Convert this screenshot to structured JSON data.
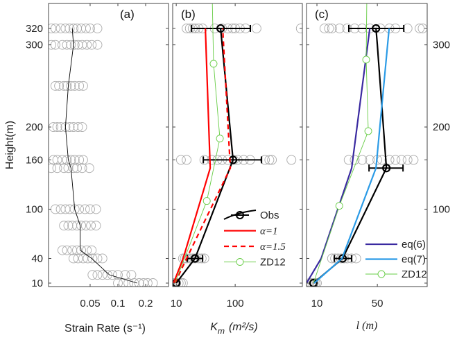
{
  "chart_data": [
    {
      "panel": "a",
      "type": "line",
      "title": "(a)",
      "xlabel": "Strain Rate (s⁻¹)",
      "ylabel": "Height(m)",
      "xscale": "log",
      "xlim": [
        0.0177,
        0.354
      ],
      "ylim": [
        6,
        350
      ],
      "xticks": [
        0.05,
        0.1,
        0.2
      ],
      "xtick_labels": [
        "0.05",
        "0.1",
        "0.2"
      ],
      "yticks": [
        10,
        40,
        100,
        160,
        200,
        300,
        320
      ],
      "ytick_labels": [
        "10",
        "40",
        "100",
        "160",
        "200",
        "300",
        "320"
      ],
      "series": [
        {
          "name": "Obs",
          "color": "#000000",
          "heights": [
            10,
            20,
            40,
            50,
            80,
            100,
            150,
            160,
            200,
            250,
            300,
            320
          ],
          "mean": [
            0.162,
            0.081,
            0.052,
            0.039,
            0.039,
            0.034,
            0.031,
            0.029,
            0.027,
            0.029,
            0.033,
            0.032
          ],
          "err_low": [
            0.107,
            0.053,
            0.038,
            0.028,
            0.027,
            0.023,
            0.023,
            0.021,
            0.021,
            0.021,
            0.021,
            0.02
          ],
          "err_high": [
            0.225,
            0.125,
            0.065,
            0.05,
            0.051,
            0.045,
            0.04,
            0.037,
            0.034,
            0.039,
            0.047,
            0.044
          ]
        }
      ],
      "samples": [
        {
          "height": 320,
          "values": [
            0.019,
            0.021,
            0.024,
            0.027,
            0.03,
            0.033,
            0.036,
            0.04,
            0.045,
            0.05,
            0.06
          ]
        },
        {
          "height": 300,
          "values": [
            0.019,
            0.021,
            0.025,
            0.028,
            0.031,
            0.034,
            0.037,
            0.041,
            0.046,
            0.052,
            0.06
          ]
        },
        {
          "height": 250,
          "values": [
            0.021,
            0.023,
            0.026,
            0.028,
            0.031,
            0.034,
            0.038,
            0.042
          ]
        },
        {
          "height": 200,
          "values": [
            0.02,
            0.022,
            0.024,
            0.027,
            0.03,
            0.033,
            0.037,
            0.041
          ]
        },
        {
          "height": 160,
          "values": [
            0.02,
            0.022,
            0.025,
            0.028,
            0.031,
            0.034,
            0.038,
            0.042
          ]
        },
        {
          "height": 150,
          "values": [
            0.019,
            0.022,
            0.026,
            0.029,
            0.033,
            0.036,
            0.041,
            0.049
          ]
        },
        {
          "height": 100,
          "values": [
            0.021,
            0.024,
            0.027,
            0.03,
            0.034,
            0.038,
            0.044,
            0.05,
            0.058
          ]
        },
        {
          "height": 80,
          "values": [
            0.026,
            0.029,
            0.032,
            0.036,
            0.04,
            0.045,
            0.051,
            0.058
          ]
        },
        {
          "height": 50,
          "values": [
            0.025,
            0.028,
            0.032,
            0.036,
            0.04,
            0.046,
            0.052
          ]
        },
        {
          "height": 40,
          "values": [
            0.033,
            0.037,
            0.042,
            0.047,
            0.053,
            0.06,
            0.068
          ]
        },
        {
          "height": 20,
          "values": [
            0.053,
            0.06,
            0.068,
            0.077,
            0.087,
            0.1,
            0.12,
            0.14
          ]
        },
        {
          "height": 10,
          "values": [
            0.1,
            0.115,
            0.13,
            0.15,
            0.17,
            0.19,
            0.21,
            0.24
          ]
        }
      ],
      "legend": []
    },
    {
      "panel": "b",
      "type": "line",
      "title": "(b)",
      "xlabel_main": "K",
      "xlabel_sub": "m",
      "xlabel_unit": "(m²/s)",
      "xscale": "log",
      "xlim": [
        8.7,
        1380
      ],
      "ylim": [
        6,
        350
      ],
      "xticks": [
        10,
        100
      ],
      "xtick_labels": [
        "10",
        "100"
      ],
      "series": [
        {
          "name": "Obs",
          "color": "#000000",
          "style": "solid-errorbar",
          "heights": [
            10,
            40,
            160,
            320
          ],
          "mean": [
            10,
            20.8,
            92,
            56.6
          ],
          "err_low": [
            10,
            15.4,
            28.8,
            18.2
          ],
          "err_high": [
            10,
            28,
            280,
            181
          ]
        },
        {
          "name": "α=1",
          "color": "#ff0000",
          "style": "solid",
          "heights": [
            10,
            40,
            150,
            320
          ],
          "values": [
            9,
            13.1,
            37.7,
            31.2
          ]
        },
        {
          "name": "α=1.5",
          "color": "#ff0000",
          "style": "dashed",
          "heights": [
            10,
            40,
            150,
            320
          ],
          "values": [
            9.5,
            15,
            82.7,
            61.4
          ]
        },
        {
          "name": "ZD12",
          "color": "#66cc44",
          "style": "thin-marker",
          "heights": [
            10,
            110,
            186,
            277,
            350
          ],
          "values": [
            9.5,
            33,
            55,
            43,
            41
          ],
          "marker_heights": [
            110,
            186,
            277
          ]
        }
      ],
      "samples": [
        {
          "height": 320,
          "values": [
            15,
            17,
            19,
            21,
            24,
            28,
            45,
            60,
            75,
            90,
            100,
            120,
            150,
            230,
            1300
          ]
        },
        {
          "height": 160,
          "values": [
            12,
            15,
            30,
            40,
            50,
            60,
            75,
            95,
            110,
            140,
            180,
            320,
            380,
            420,
            900
          ]
        },
        {
          "height": 40,
          "values": [
            13,
            14,
            15,
            17,
            19,
            21,
            24,
            27,
            30
          ]
        },
        {
          "height": 10,
          "values": [
            9,
            10,
            11,
            12,
            13
          ]
        }
      ],
      "legend": [
        "Obs",
        "α=1",
        "α=1.5",
        "ZD12"
      ]
    },
    {
      "panel": "c",
      "type": "line",
      "title": "(c)",
      "xlabel": "l (m)",
      "xscale": "linear",
      "xlim": [
        3.1,
        83
      ],
      "ylim": [
        6,
        350
      ],
      "xticks": [
        10,
        50
      ],
      "xtick_labels": [
        "10",
        "50"
      ],
      "right_yticks": [
        100,
        200,
        300
      ],
      "right_ytick_labels": [
        "100",
        "200",
        "300"
      ],
      "series": [
        {
          "name": "Obs",
          "color": "#000000",
          "style": "solid-errorbar",
          "heights": [
            10,
            40,
            150,
            300,
            320
          ],
          "mean": [
            7.7,
            27,
            56,
            50,
            49.1
          ],
          "err_low": [
            7.7,
            21.5,
            44.5,
            null,
            31.1
          ],
          "err_high": [
            7.7,
            33,
            67,
            null,
            67.5
          ],
          "errbar_heights": [
            10,
            40,
            160,
            320
          ]
        },
        {
          "name": "eq(6)",
          "color": "#3a2aa0",
          "style": "solid",
          "heights": [
            10,
            40,
            150,
            320
          ],
          "values": [
            3.1,
            12.8,
            33,
            45
          ]
        },
        {
          "name": "eq(7)",
          "color": "#2b9be6",
          "style": "solid",
          "heights": [
            10,
            40,
            150,
            320
          ],
          "values": [
            8.2,
            26.6,
            49.1,
            57.8
          ]
        },
        {
          "name": "ZD12",
          "color": "#66cc44",
          "style": "thin-marker",
          "heights": [
            10,
            104,
            195,
            282,
            350
          ],
          "values": [
            7.7,
            24.8,
            44,
            42.6,
            43
          ],
          "marker_heights": [
            104,
            195,
            282
          ]
        }
      ],
      "samples": [
        {
          "height": 320,
          "values": [
            15,
            18,
            20,
            25,
            30,
            35,
            40,
            45,
            52,
            58,
            62,
            70,
            78,
            80
          ]
        },
        {
          "height": 160,
          "values": [
            31,
            35,
            40,
            45,
            50,
            53,
            58,
            62,
            66,
            70,
            74
          ]
        },
        {
          "height": 40,
          "values": [
            20,
            22,
            24,
            26,
            28,
            30,
            33,
            36
          ]
        },
        {
          "height": 10,
          "values": [
            5,
            6,
            7,
            8,
            9,
            10
          ]
        }
      ],
      "legend": [
        "eq(6)",
        "eq(7)",
        "ZD12"
      ]
    }
  ]
}
